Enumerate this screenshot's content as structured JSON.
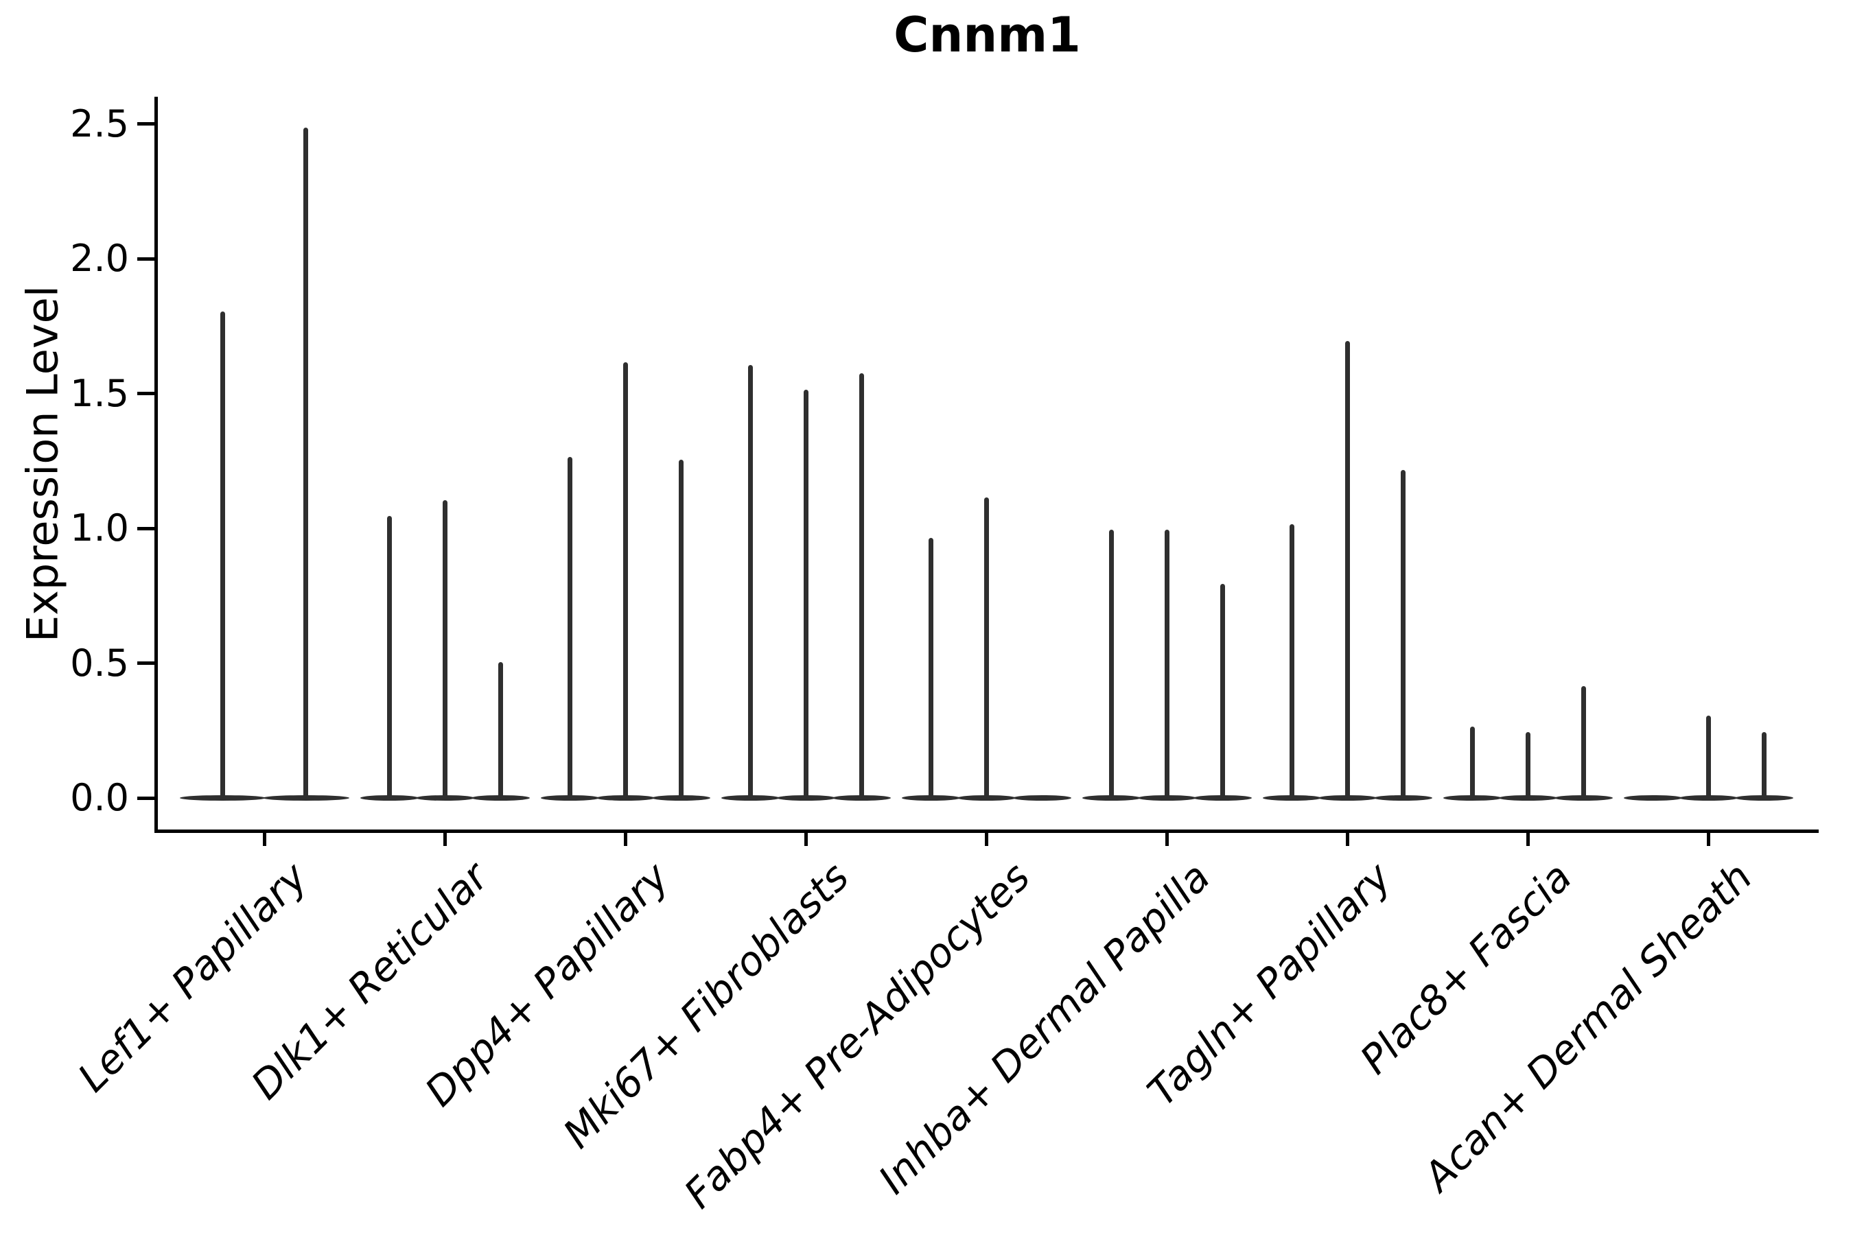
{
  "chart_data": {
    "type": "violin",
    "title": "Cnnm1",
    "ylabel": "Expression Level",
    "ylim": [
      -0.12,
      2.6
    ],
    "grid": false,
    "legend": "none",
    "ytick_labels": [
      "0.0",
      "0.5",
      "1.0",
      "1.5",
      "2.0",
      "2.5"
    ],
    "categories": [
      "Lef1+ Papillary",
      "Dlk1+ Reticular",
      "Dpp4+ Papillary",
      "Mki67+ Fibroblasts",
      "Fabp4+ Pre-Adipocytes",
      "Inhba+ Dermal Papilla",
      "Tagln+ Papillary",
      "Plac8+ Fascia",
      "Acan+ Dermal Sheath"
    ],
    "groups": [
      {
        "category": "Lef1+ Papillary",
        "violin_max": [
          1.8,
          2.48
        ]
      },
      {
        "category": "Dlk1+ Reticular",
        "violin_max": [
          1.04,
          1.1,
          0.5
        ]
      },
      {
        "category": "Dpp4+ Papillary",
        "violin_max": [
          1.26,
          1.61,
          1.25
        ]
      },
      {
        "category": "Mki67+ Fibroblasts",
        "violin_max": [
          1.6,
          1.51,
          1.57
        ]
      },
      {
        "category": "Fabp4+ Pre-Adipocytes",
        "violin_max": [
          0.96,
          1.11,
          0.0
        ]
      },
      {
        "category": "Inhba+ Dermal Papilla",
        "violin_max": [
          0.99,
          0.99,
          0.79
        ]
      },
      {
        "category": "Tagln+ Papillary",
        "violin_max": [
          1.01,
          1.69,
          1.21
        ]
      },
      {
        "category": "Plac8+ Fascia",
        "violin_max": [
          0.26,
          0.24,
          0.41
        ]
      },
      {
        "category": "Acan+ Dermal Sheath",
        "violin_max": [
          0.0,
          0.3,
          0.24
        ]
      }
    ],
    "violin_color": "#2f2f2f",
    "axis_color": "#000000"
  }
}
